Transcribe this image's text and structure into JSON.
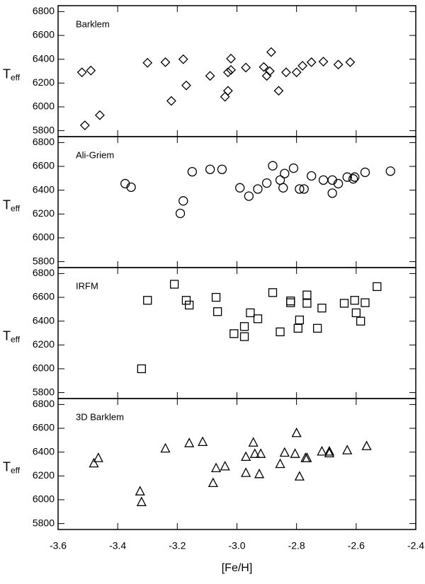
{
  "chart_data": [
    {
      "type": "scatter",
      "title": "Barklem",
      "ylabel": "T",
      "ylabel_subscript": "eff",
      "marker": "diamond",
      "color": "#000000",
      "x": [
        -3.52,
        -3.49,
        -3.51,
        -3.46,
        -3.3,
        -3.24,
        -3.18,
        -3.17,
        -3.22,
        -3.09,
        -3.02,
        -3.02,
        -3.03,
        -3.03,
        -3.04,
        -2.97,
        -2.91,
        -2.885,
        -2.89,
        -2.9,
        -2.86,
        -2.835,
        -2.8,
        -2.78,
        -2.75,
        -2.71,
        -2.66,
        -2.62
      ],
      "values": [
        6290,
        6305,
        5845,
        5930,
        6370,
        6375,
        6400,
        6180,
        6050,
        6260,
        6405,
        6310,
        6290,
        6135,
        6085,
        6330,
        6335,
        6460,
        6300,
        6260,
        6135,
        6290,
        6290,
        6345,
        6375,
        6380,
        6355,
        6375
      ],
      "ylim": [
        5750,
        6850
      ],
      "yticks": [
        5800,
        6000,
        6200,
        6400,
        6600,
        6800
      ]
    },
    {
      "type": "scatter",
      "title": "Ali-Griem",
      "ylabel": "T",
      "ylabel_subscript": "eff",
      "marker": "circle",
      "color": "#000000",
      "x": [
        -3.375,
        -3.355,
        -3.18,
        -3.19,
        -3.15,
        -3.09,
        -3.05,
        -2.99,
        -2.96,
        -2.93,
        -2.9,
        -2.88,
        -2.855,
        -2.84,
        -2.845,
        -2.81,
        -2.79,
        -2.775,
        -2.75,
        -2.71,
        -2.68,
        -2.68,
        -2.66,
        -2.63,
        -2.61,
        -2.605,
        -2.57,
        -2.485
      ],
      "values": [
        6455,
        6425,
        6310,
        6205,
        6555,
        6575,
        6575,
        6420,
        6350,
        6410,
        6460,
        6605,
        6485,
        6540,
        6420,
        6585,
        6410,
        6410,
        6520,
        6485,
        6485,
        6375,
        6455,
        6510,
        6495,
        6510,
        6550,
        6560
      ],
      "ylim": [
        5750,
        6850
      ],
      "yticks": [
        5800,
        6000,
        6200,
        6400,
        6600,
        6800
      ]
    },
    {
      "type": "scatter",
      "title": "IRFM",
      "ylabel": "T",
      "ylabel_subscript": "eff",
      "marker": "square",
      "color": "#000000",
      "x": [
        -3.32,
        -3.3,
        -3.21,
        -3.17,
        -3.16,
        -3.07,
        -3.065,
        -3.01,
        -2.975,
        -2.975,
        -2.955,
        -2.93,
        -2.88,
        -2.855,
        -2.82,
        -2.82,
        -2.795,
        -2.79,
        -2.765,
        -2.765,
        -2.73,
        -2.715,
        -2.64,
        -2.605,
        -2.6,
        -2.585,
        -2.57,
        -2.53
      ],
      "values": [
        6000,
        6575,
        6710,
        6575,
        6535,
        6600,
        6480,
        6295,
        6355,
        6270,
        6470,
        6420,
        6640,
        6310,
        6555,
        6570,
        6340,
        6410,
        6620,
        6550,
        6340,
        6510,
        6550,
        6575,
        6470,
        6400,
        6555,
        6690
      ],
      "ylim": [
        5750,
        6850
      ],
      "yticks": [
        5800,
        6000,
        6200,
        6400,
        6600,
        6800
      ]
    },
    {
      "type": "scatter",
      "title": "3D Barklem",
      "ylabel": "T",
      "ylabel_subscript": "eff",
      "marker": "triangle",
      "color": "#000000",
      "x": [
        -3.48,
        -3.465,
        -3.325,
        -3.32,
        -3.24,
        -3.16,
        -3.115,
        -3.08,
        -3.07,
        -3.04,
        -2.97,
        -2.97,
        -2.945,
        -2.94,
        -2.92,
        -2.925,
        -2.855,
        -2.84,
        -2.805,
        -2.8,
        -2.79,
        -2.77,
        -2.765,
        -2.715,
        -2.69,
        -2.69,
        -2.63,
        -2.565
      ],
      "values": [
        6305,
        6350,
        6070,
        5980,
        6430,
        6475,
        6485,
        6140,
        6265,
        6280,
        6360,
        6225,
        6480,
        6385,
        6385,
        6215,
        6300,
        6395,
        6385,
        6560,
        6195,
        6350,
        6350,
        6405,
        6390,
        6405,
        6415,
        6450
      ],
      "ylim": [
        5750,
        6850
      ],
      "yticks": [
        5800,
        6000,
        6200,
        6400,
        6600,
        6800
      ],
      "xlabel": "[Fe/H]",
      "xlim": [
        -3.6,
        -2.4
      ],
      "xticks": [
        -3.6,
        -3.4,
        -3.2,
        {
          "value": -3,
          "label": "-3.0"
        },
        -2.8,
        -2.6,
        -2.4
      ]
    }
  ]
}
